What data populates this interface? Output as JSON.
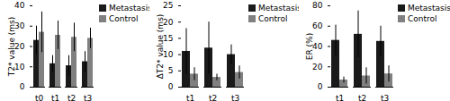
{
  "chart_data": [
    {
      "type": "bar",
      "ylabel": "T2* value (ms)",
      "categories": [
        "t0",
        "t1",
        "t2",
        "t3"
      ],
      "series": [
        {
          "name": "Metastasis",
          "color": "#1a1a1a",
          "values": [
            23,
            11.5,
            10.5,
            12.5
          ],
          "errors": [
            7,
            4,
            5,
            5
          ]
        },
        {
          "name": "Control",
          "color": "#808080",
          "values": [
            27,
            25.5,
            24.5,
            24
          ],
          "errors": [
            10,
            7,
            7,
            5
          ]
        }
      ],
      "ylim": [
        0,
        40
      ],
      "yticks": [
        0,
        10,
        20,
        30,
        40
      ],
      "legend": "upper right"
    },
    {
      "type": "bar",
      "ylabel": "ΔT2* value (ms)",
      "categories": [
        "t1",
        "t2",
        "t3"
      ],
      "series": [
        {
          "name": "Metastasis",
          "color": "#1a1a1a",
          "values": [
            11,
            12,
            10
          ],
          "errors": [
            7,
            8,
            3
          ]
        },
        {
          "name": "Control",
          "color": "#808080",
          "values": [
            4,
            3,
            4.5
          ],
          "errors": [
            2,
            1,
            2
          ]
        }
      ],
      "ylim": [
        0,
        25
      ],
      "yticks": [
        0,
        5,
        10,
        15,
        20,
        25
      ],
      "legend": "upper right"
    },
    {
      "type": "bar",
      "ylabel": "ER (%)",
      "categories": [
        "t1",
        "t2",
        "t3"
      ],
      "series": [
        {
          "name": "Metastasis",
          "color": "#1a1a1a",
          "values": [
            46,
            52,
            45
          ],
          "errors": [
            15,
            23,
            15
          ]
        },
        {
          "name": "Control",
          "color": "#808080",
          "values": [
            7,
            11,
            13
          ],
          "errors": [
            3,
            8,
            8
          ]
        }
      ],
      "ylim": [
        0,
        80
      ],
      "yticks": [
        0,
        20,
        40,
        60,
        80
      ],
      "legend": "upper right"
    }
  ]
}
